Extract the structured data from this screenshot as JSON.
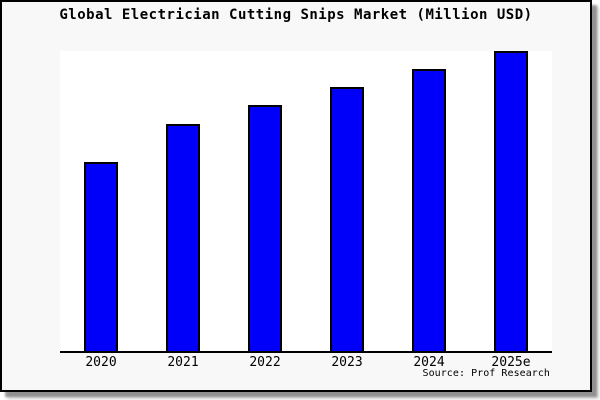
{
  "window": {
    "background_color": "#f8f8f8",
    "border_color": "#000000",
    "plot_background_color": "#ffffff"
  },
  "chart_data": {
    "type": "bar",
    "title": "Global Electrician Cutting Snips Market (Million USD)",
    "categories": [
      "2020",
      "2021",
      "2022",
      "2023",
      "2024",
      "2025e"
    ],
    "values": [
      63,
      75.5,
      82,
      88,
      94,
      100
    ],
    "values_note": "No y-axis scale is shown in the image; values are relative bar heights with the tallest bar (2025e) = 100.",
    "xlabel": "",
    "ylabel": "",
    "ylim": [
      0,
      100
    ],
    "grid": false,
    "legend": false,
    "bar_color": "#0000fa",
    "bar_border_color": "#000000",
    "axis_line_color": "#000000",
    "source": "Source: Prof Research"
  }
}
